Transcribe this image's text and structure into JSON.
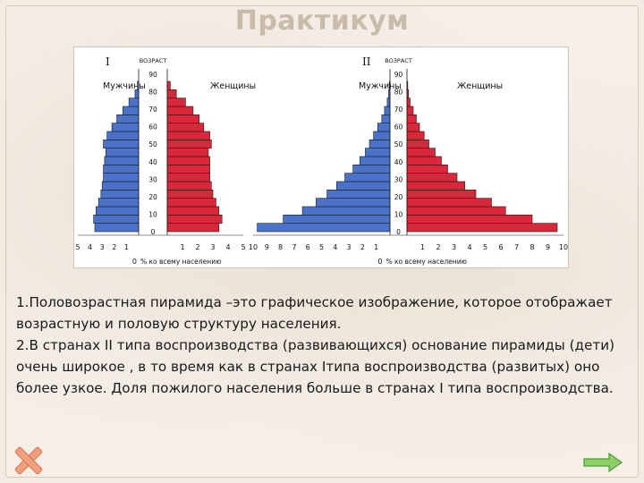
{
  "slide": {
    "title": "Практикум",
    "paragraph1": "1.Половозрастная пирамида –это графическое изображение, которое отображает возрастную и половую структуру населения.",
    "paragraph2": "2.В странах II типа воспроизводства (развивающихся) основание пирамиды (дети) очень широкое , в то время как в странах Iтипа воспроизводства (развитых) оно более узкое. Доля пожилого населения больше в странах I типа воспроизводства."
  },
  "nav": {
    "close_icon": "cross-icon",
    "next_icon": "arrow-right-icon"
  },
  "colors": {
    "male": "#4a72c8",
    "female": "#d8283a",
    "outline": "#1a1a1a"
  },
  "chart_data": [
    {
      "type": "bar",
      "orientation": "horizontal-pyramid",
      "roman": "I",
      "axis_title": "ВОЗРАСТ",
      "male_label": "Мужчины",
      "female_label": "Женщины",
      "xlabel": "% ко всему населению",
      "xlabel_prefix": "0",
      "xmax": 5,
      "male_ticks": [
        "5",
        "4",
        "3",
        "2",
        "1"
      ],
      "female_ticks": [
        "1",
        "2",
        "3",
        "4",
        "5"
      ],
      "age_ticks": [
        "90",
        "80",
        "70",
        "60",
        "50",
        "40",
        "30",
        "20",
        "10",
        "0"
      ],
      "series": [
        {
          "name": "Мужчины",
          "values": [
            3.6,
            3.7,
            3.5,
            3.3,
            3.1,
            3.0,
            2.9,
            2.9,
            2.8,
            2.7,
            2.9,
            2.6,
            2.2,
            1.8,
            1.3,
            0.8,
            0.3,
            0.1
          ]
        },
        {
          "name": "Женщины",
          "values": [
            3.4,
            3.6,
            3.4,
            3.2,
            3.0,
            2.9,
            2.8,
            2.8,
            2.8,
            2.7,
            2.9,
            2.8,
            2.4,
            2.1,
            1.7,
            1.2,
            0.6,
            0.2
          ]
        }
      ]
    },
    {
      "type": "bar",
      "orientation": "horizontal-pyramid",
      "roman": "II",
      "axis_title": "ВОЗРАСТ",
      "male_label": "Мужчины",
      "female_label": "Женщины",
      "xlabel": "% ко всему населению",
      "xlabel_prefix": "0",
      "xmax": 10,
      "male_ticks": [
        "10",
        "9",
        "8",
        "7",
        "6",
        "5",
        "4",
        "3",
        "2",
        "1"
      ],
      "female_ticks": [
        "1",
        "2",
        "3",
        "4",
        "5",
        "6",
        "7",
        "8",
        "9",
        "10"
      ],
      "age_ticks": [
        "90",
        "80",
        "70",
        "60",
        "50",
        "40",
        "30",
        "20",
        "10",
        "0"
      ],
      "series": [
        {
          "name": "Мужчины",
          "values": [
            9.7,
            7.8,
            6.4,
            5.4,
            4.6,
            3.9,
            3.3,
            2.7,
            2.2,
            1.8,
            1.5,
            1.2,
            0.9,
            0.6,
            0.4,
            0.2,
            0.1,
            0.05
          ]
        },
        {
          "name": "Женщины",
          "values": [
            9.6,
            8.0,
            6.3,
            5.4,
            4.4,
            3.7,
            3.2,
            2.6,
            2.2,
            1.8,
            1.4,
            1.1,
            0.8,
            0.6,
            0.4,
            0.2,
            0.1,
            0.05
          ]
        }
      ]
    }
  ]
}
